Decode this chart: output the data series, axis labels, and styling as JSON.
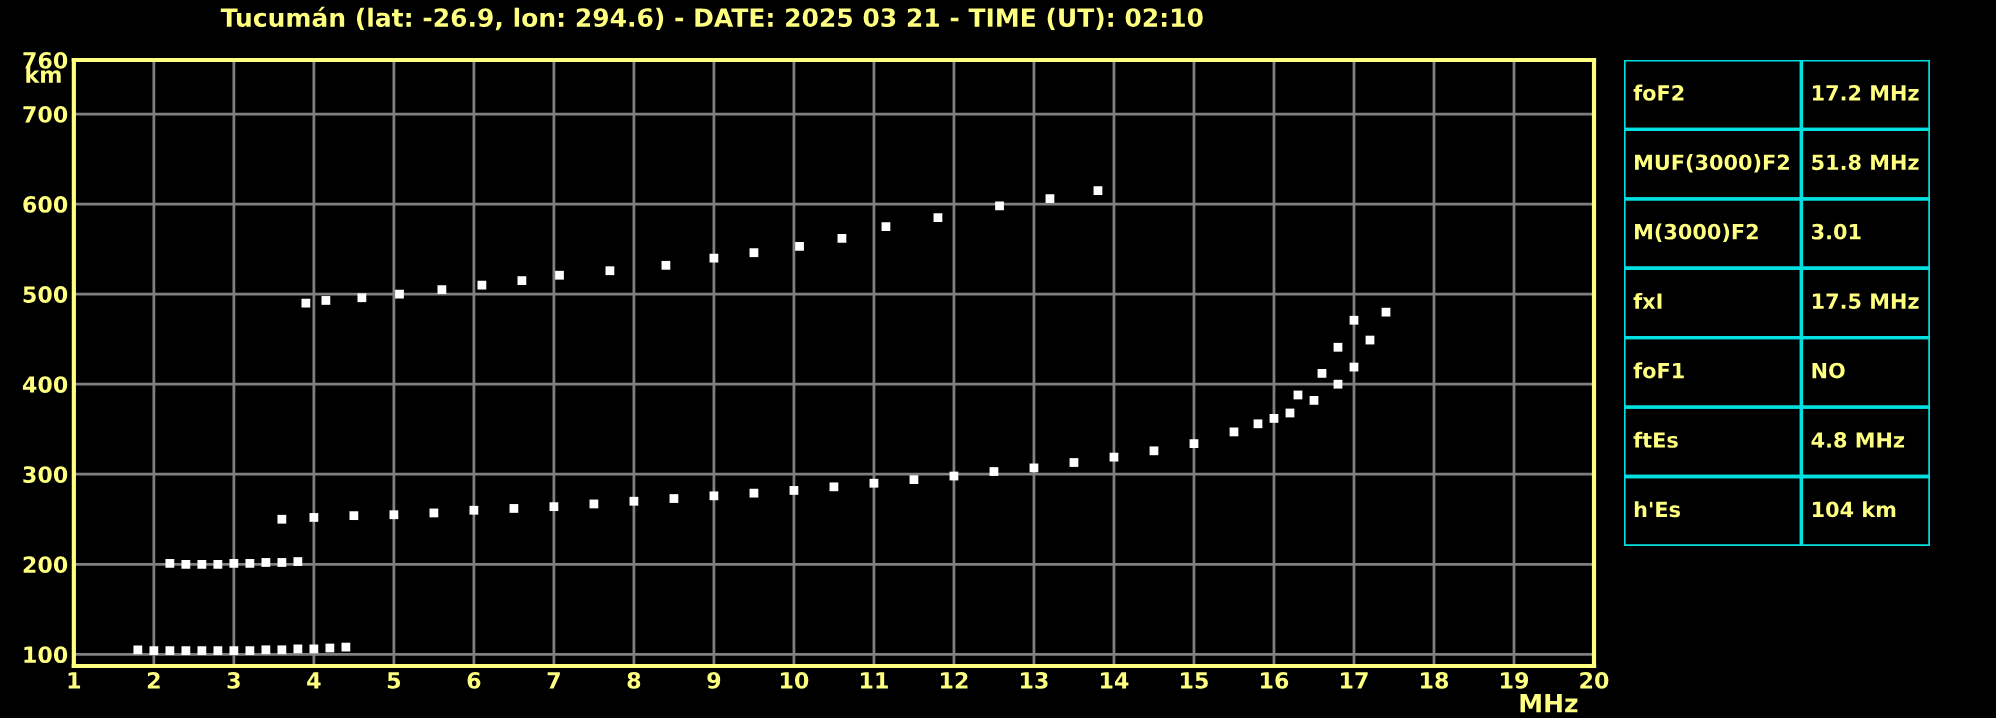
{
  "chart_data": [
    {
      "type": "scatter",
      "title": "Tucumán (lat: -26.9, lon: 294.6) - DATE: 2025 03 21 - TIME (UT): 02:10",
      "xlabel": "MHz",
      "ylabel": "km",
      "marker": "square",
      "grid": true,
      "xlim": [
        1,
        20
      ],
      "ylim": [
        87,
        760
      ],
      "xticks": [
        1,
        2,
        3,
        4,
        5,
        6,
        7,
        8,
        9,
        10,
        11,
        12,
        13,
        14,
        15,
        16,
        17,
        18,
        19,
        20
      ],
      "yticks": [
        100,
        200,
        300,
        400,
        500,
        600,
        700,
        760
      ],
      "series": [
        {
          "color": "#ffffff",
          "x": [
            1.8,
            2.0,
            2.2,
            2.4,
            2.6,
            2.8,
            3.0,
            3.2,
            3.4,
            3.6,
            3.8,
            4.0,
            4.2,
            4.4
          ],
          "values": [
            105,
            104,
            104,
            104,
            104,
            104,
            104,
            104,
            105,
            105,
            106,
            106,
            107,
            108
          ]
        },
        {
          "color": "#ffffff",
          "x": [
            2.2,
            2.4,
            2.6,
            2.8,
            3.0,
            3.2,
            3.4,
            3.6,
            3.8
          ],
          "values": [
            201,
            200,
            200,
            200,
            201,
            201,
            202,
            202,
            203
          ]
        },
        {
          "color": "#ffffff",
          "x": [
            3.6,
            4.0,
            4.5,
            5.0,
            5.5,
            6.0,
            6.5,
            7.0,
            7.5,
            8.0,
            8.5,
            9.0,
            9.5,
            10.0,
            10.5,
            11.0,
            11.5,
            12.0,
            12.5,
            13.0,
            13.5,
            14.0,
            14.5,
            15.0,
            15.5,
            16.0,
            16.3,
            16.6,
            16.8,
            17.0
          ],
          "values": [
            250,
            252,
            254,
            255,
            257,
            260,
            262,
            264,
            267,
            270,
            273,
            276,
            279,
            282,
            286,
            290,
            294,
            298,
            303,
            307,
            313,
            319,
            326,
            334,
            347,
            362,
            388,
            412,
            441,
            471
          ]
        },
        {
          "color": "#ffffff",
          "x": [
            15.8,
            16.2,
            16.5,
            16.8,
            17.0,
            17.2,
            17.4
          ],
          "values": [
            356,
            368,
            382,
            400,
            419,
            449,
            480
          ]
        },
        {
          "color": "#ffffff",
          "x": [
            3.9,
            4.15,
            4.6,
            5.07,
            5.6,
            6.1,
            6.6,
            7.07,
            7.7,
            8.4,
            9.0,
            9.5,
            10.07,
            10.6,
            11.15,
            11.8,
            12.57,
            13.2,
            13.8
          ],
          "values": [
            490,
            493,
            496,
            500,
            505,
            510,
            515,
            521,
            526,
            532,
            540,
            546,
            553,
            562,
            575,
            585,
            598,
            606,
            615
          ]
        }
      ]
    },
    {
      "type": "other",
      "annotations": [
        "foF2",
        "17.2 MHz",
        "MUF(3000)F2",
        "51.8 MHz",
        "M(3000)F2",
        "3.01",
        "fxI",
        "17.5 MHz",
        "foF1",
        "NO",
        "ftEs",
        "4.8 MHz",
        "h'Es",
        "104 km"
      ]
    }
  ]
}
